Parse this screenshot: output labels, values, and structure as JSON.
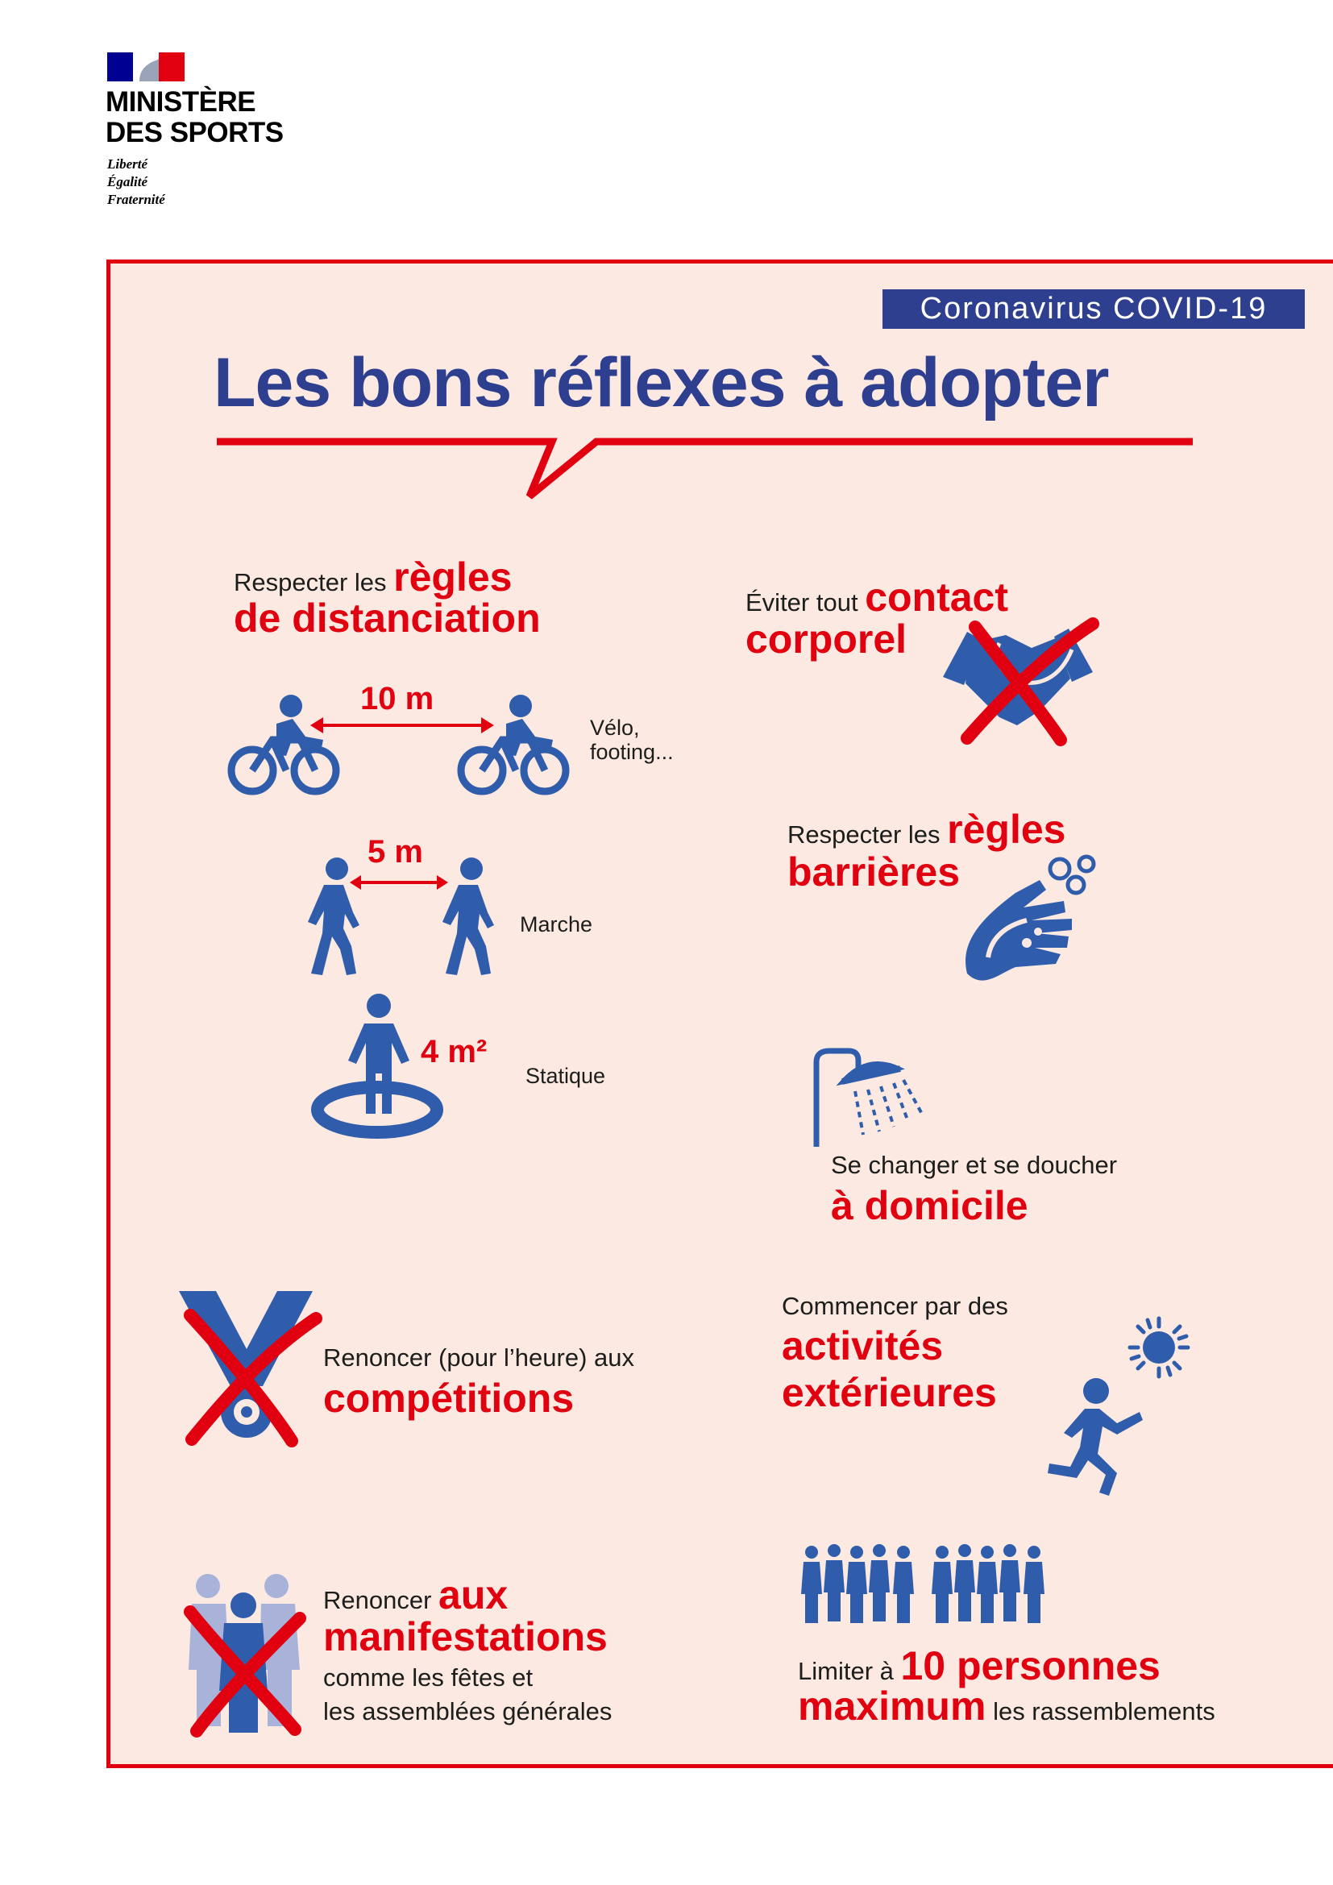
{
  "header": {
    "ministry_line1": "MINISTÈRE",
    "ministry_line2": "DES SPORTS",
    "motto": [
      "Liberté",
      "Égalité",
      "Fraternité"
    ]
  },
  "badge": "Coronavirus COVID-19",
  "title": "Les bons réflexes à adopter",
  "colors": {
    "blue": "#2f3f8f",
    "icon_blue": "#2f5dab",
    "red": "#e1000f",
    "background": "#fbe9e2"
  },
  "distancing": {
    "intro": "Respecter les",
    "emphasis_1": "règles",
    "emphasis_2": "de distanciation",
    "items": [
      {
        "distance": "10 m",
        "label_1": "Vélo,",
        "label_2": "footing...",
        "icon": "cyclist-icon"
      },
      {
        "distance": "5 m",
        "label": "Marche",
        "icon": "walker-icon"
      },
      {
        "distance": "4 m²",
        "label": "Statique",
        "icon": "standing-person-icon"
      }
    ]
  },
  "contact": {
    "intro": "Éviter tout",
    "emphasis_1": "contact",
    "emphasis_2": "corporel",
    "icon": "handshake-crossed-icon"
  },
  "barriers": {
    "intro": "Respecter les",
    "emphasis_1": "règles",
    "emphasis_2": "barrières",
    "icon": "hand-washing-icon"
  },
  "shower": {
    "intro": "Se changer et se doucher",
    "emphasis": "à domicile",
    "icon": "shower-icon"
  },
  "competitions": {
    "intro": "Renoncer (pour l’heure) aux",
    "emphasis": "compétitions",
    "icon": "medal-crossed-icon"
  },
  "outdoor": {
    "intro": "Commencer par des",
    "emphasis_1": "activités",
    "emphasis_2": "extérieures",
    "icon": "runner-sun-icon"
  },
  "events": {
    "intro": "Renoncer",
    "emphasis_1": "aux",
    "emphasis_2": "manifestations",
    "detail_1": "comme les fêtes et",
    "detail_2": "les assemblées générales",
    "icon": "crowd-crossed-icon"
  },
  "gatherings": {
    "intro": "Limiter à",
    "emphasis_1": "10 personnes",
    "emphasis_2": "maximum",
    "detail": "les rassemblements",
    "icon": "group-of-ten-icon"
  }
}
